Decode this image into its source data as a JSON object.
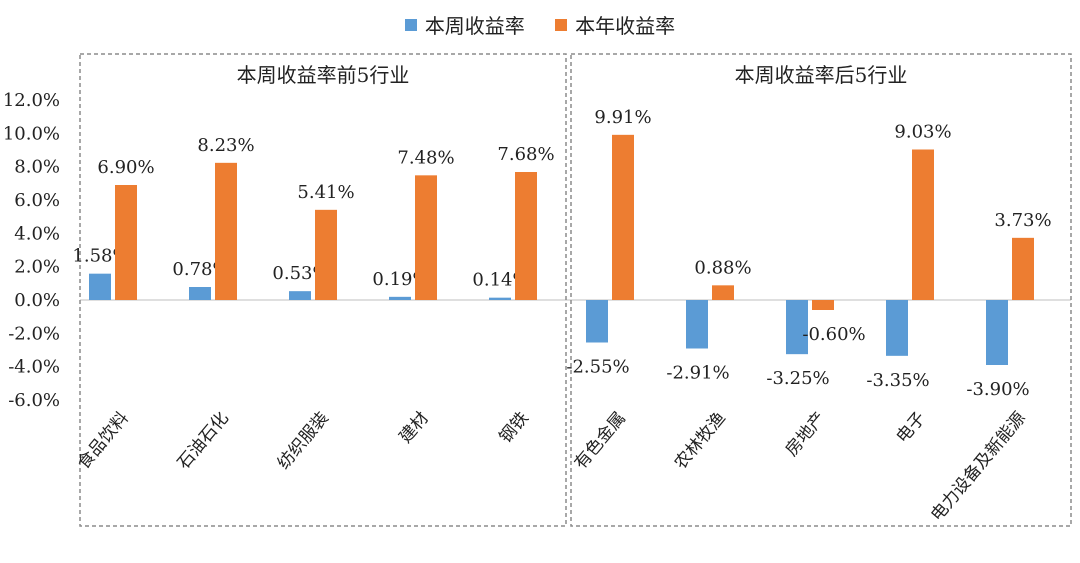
{
  "colors": {
    "series1": "#5b9bd5",
    "series2": "#ed7d31",
    "box": "#8c8c8c",
    "text": "#222222"
  },
  "chart_data": {
    "type": "bar",
    "legend_position": "top-center",
    "ylim": [
      -6,
      12
    ],
    "yticks": [
      "12.0%",
      "10.0%",
      "8.0%",
      "6.0%",
      "4.0%",
      "2.0%",
      "0.0%",
      "-2.0%",
      "-4.0%",
      "-6.0%"
    ],
    "series": [
      {
        "name": "本周收益率"
      },
      {
        "name": "本年收益率"
      }
    ],
    "groups": [
      {
        "title": "本周收益率前5行业",
        "categories": [
          "食品饮料",
          "石油石化",
          "纺织服装",
          "建材",
          "钢铁"
        ],
        "series_values": [
          [
            1.58,
            0.78,
            0.53,
            0.19,
            0.14
          ],
          [
            6.9,
            8.23,
            5.41,
            7.48,
            7.68
          ]
        ],
        "series_labels": [
          [
            "1.58%",
            "0.78%",
            "0.53%",
            "0.19%",
            "0.14%"
          ],
          [
            "6.90%",
            "8.23%",
            "5.41%",
            "7.48%",
            "7.68%"
          ]
        ]
      },
      {
        "title": "本周收益率后5行业",
        "categories": [
          "有色金属",
          "农林牧渔",
          "房地产",
          "电子",
          "电力设备及新能源"
        ],
        "series_values": [
          [
            -2.55,
            -2.91,
            -3.25,
            -3.35,
            -3.9
          ],
          [
            9.91,
            0.88,
            -0.6,
            9.03,
            3.73
          ]
        ],
        "series_labels": [
          [
            "-2.55%",
            "-2.91%",
            "-3.25%",
            "-3.35%",
            "-3.90%"
          ],
          [
            "9.91%",
            "0.88%",
            "-0.60%",
            "9.03%",
            "3.73%"
          ]
        ]
      }
    ]
  }
}
